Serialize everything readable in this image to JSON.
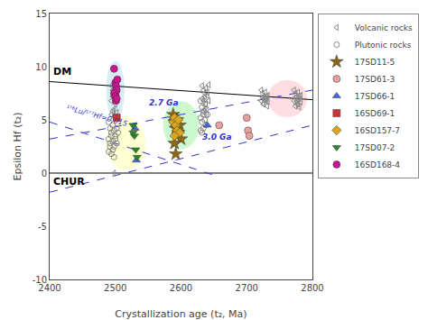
{
  "chart_data": {
    "type": "scatter",
    "x_label": "Crystallization age (t₂, Ma)",
    "y_label": "Epsilon Hf (t₂)",
    "xlim": [
      2400,
      2800
    ],
    "ylim": [
      -10,
      15
    ],
    "xticks": [
      2400,
      2500,
      2600,
      2700,
      2800
    ],
    "yticks": [
      -10,
      -5,
      0,
      5,
      10,
      15
    ],
    "grid": false,
    "legend": "right",
    "series": [
      {
        "name": "Volcanic rocks",
        "color": "#888888",
        "marker": "triangle-left-open",
        "x": [
          2494,
          2496,
          2498,
          2500,
          2502,
          2494,
          2496,
          2498,
          2500,
          2502,
          2494,
          2496,
          2498,
          2500,
          2502,
          2632,
          2634,
          2636,
          2638,
          2640,
          2642,
          2632,
          2634,
          2636,
          2638,
          2640,
          2642,
          2635,
          2637,
          2639,
          2722,
          2724,
          2726,
          2728,
          2730,
          2732,
          2722,
          2724,
          2726,
          2728,
          2730,
          2732,
          2725,
          2727,
          2729,
          2731,
          2772,
          2774,
          2776,
          2778,
          2780,
          2782,
          2772,
          2774,
          2776,
          2778,
          2780,
          2782,
          2774,
          2776,
          2778,
          2780,
          2498
        ],
        "values": [
          8.2,
          7.8,
          7.5,
          8.0,
          7.6,
          6.8,
          7.2,
          7.0,
          6.5,
          7.3,
          5.5,
          5.8,
          6.0,
          5.3,
          5.7,
          8.2,
          7.8,
          7.5,
          8.0,
          7.6,
          8.3,
          7.0,
          6.8,
          7.2,
          6.5,
          7.3,
          6.8,
          5.8,
          6.0,
          5.5,
          7.8,
          7.5,
          7.2,
          7.6,
          7.0,
          7.3,
          6.8,
          7.1,
          6.5,
          6.9,
          7.2,
          6.7,
          6.5,
          7.0,
          6.8,
          6.3,
          7.8,
          7.5,
          7.2,
          7.6,
          7.0,
          7.3,
          6.8,
          7.1,
          6.5,
          6.9,
          7.2,
          6.7,
          6.3,
          6.8,
          6.5,
          6.2,
          0.0
        ]
      },
      {
        "name": "Plutonic rocks",
        "color": "#888888",
        "marker": "circle-open",
        "x": [
          2490,
          2492,
          2494,
          2496,
          2498,
          2500,
          2502,
          2504,
          2490,
          2492,
          2494,
          2496,
          2498,
          2500,
          2502,
          2490,
          2492,
          2494,
          2496,
          2498,
          2630,
          2632,
          2634,
          2636,
          2638,
          2640,
          2630,
          2632,
          2634,
          2636,
          2638,
          2630,
          2632,
          2634
        ],
        "values": [
          4.8,
          4.2,
          3.8,
          4.5,
          4.0,
          3.5,
          4.2,
          3.8,
          3.2,
          2.8,
          3.5,
          3.0,
          2.5,
          3.2,
          2.8,
          2.0,
          2.5,
          1.8,
          2.2,
          1.5,
          6.8,
          6.2,
          5.8,
          6.5,
          6.0,
          5.5,
          5.2,
          4.8,
          5.5,
          5.0,
          4.5,
          4.0,
          3.8,
          4.2
        ]
      },
      {
        "name": "17SD11-5",
        "color": "#8B6914",
        "marker": "star",
        "x": [
          2588,
          2590,
          2592,
          2594,
          2596,
          2598,
          2600,
          2590,
          2592
        ],
        "values": [
          5.5,
          4.8,
          4.2,
          5.0,
          3.8,
          4.5,
          3.2,
          2.8,
          1.8
        ]
      },
      {
        "name": "17SD61-3",
        "color": "#E8A0A0",
        "marker": "circle",
        "x": [
          2658,
          2700,
          2702,
          2704
        ],
        "values": [
          4.5,
          5.2,
          4.0,
          3.5
        ]
      },
      {
        "name": "17SD66-1",
        "color": "#4169E1",
        "marker": "triangle-up",
        "x": [
          2530,
          2532,
          2640
        ],
        "values": [
          4.2,
          1.2,
          4.5
        ]
      },
      {
        "name": "16SD69-1",
        "color": "#CC3333",
        "marker": "square",
        "x": [
          2500,
          2502
        ],
        "values": [
          7.5,
          5.2
        ]
      },
      {
        "name": "16SD157-7",
        "color": "#DAA520",
        "marker": "diamond",
        "x": [
          2588,
          2590,
          2592,
          2594,
          2596,
          2598,
          2590
        ],
        "values": [
          4.8,
          5.2,
          4.5,
          4.0,
          5.0,
          3.8,
          3.5
        ]
      },
      {
        "name": "17SD07-2",
        "color": "#228B22",
        "marker": "triangle-down",
        "x": [
          2527,
          2529,
          2531,
          2533,
          2527
        ],
        "values": [
          4.5,
          3.5,
          2.2,
          1.5,
          3.8
        ]
      },
      {
        "name": "16SD168-4",
        "color": "#CC1493",
        "marker": "circle",
        "x": [
          2498,
          2500,
          2501,
          2502,
          2503,
          2498,
          2500,
          2501,
          2502
        ],
        "values": [
          9.8,
          8.5,
          8.2,
          7.8,
          8.8,
          7.5,
          7.2,
          6.8,
          7.0
        ]
      }
    ],
    "reference_lines": [
      {
        "x": [
          2400,
          2800
        ],
        "values": [
          8.6,
          6.9
        ],
        "color": "#000000",
        "line_style": "solid"
      },
      {
        "x": [
          2400,
          2800
        ],
        "values": [
          0.0,
          0.0
        ],
        "color": "#000000",
        "line_style": "solid"
      },
      {
        "x": [
          2400,
          2800
        ],
        "values": [
          3.2,
          7.8
        ],
        "color": "#3333cc",
        "line_style": "dashed"
      },
      {
        "x": [
          2400,
          2800
        ],
        "values": [
          -1.8,
          4.5
        ],
        "color": "#3333cc",
        "line_style": "dashed"
      },
      {
        "x": [
          2400,
          2650
        ],
        "values": [
          4.8,
          -0.2
        ],
        "color": "#3333cc",
        "line_style": "dashed"
      }
    ],
    "annotations": [
      {
        "text": "DM",
        "x": 2403,
        "y": 9.5
      },
      {
        "text": "CHUR",
        "x": 2403,
        "y": -0.8
      },
      {
        "text": "2.7 Ga",
        "x": 2548,
        "y": 6.0,
        "color": "#3333cc"
      },
      {
        "text": "3.0 Ga",
        "x": 2630,
        "y": 2.8,
        "color": "#3333cc"
      },
      {
        "text": "¹⁷⁶Lu/¹⁷⁷Hf=0.015",
        "x": 2420,
        "y": 4.0,
        "color": "#3333cc"
      }
    ],
    "ellipses": [
      {
        "cx": 2500,
        "cy": 7.8,
        "w": 28,
        "h": 5.5,
        "color": "#ADD8E6"
      },
      {
        "cx": 2516,
        "cy": 2.8,
        "w": 60,
        "h": 5.0,
        "color": "#FFFF99"
      },
      {
        "cx": 2600,
        "cy": 4.5,
        "w": 55,
        "h": 4.5,
        "color": "#90EE90"
      },
      {
        "cx": 2762,
        "cy": 7.0,
        "w": 60,
        "h": 3.5,
        "color": "#FFB6C1"
      }
    ]
  }
}
